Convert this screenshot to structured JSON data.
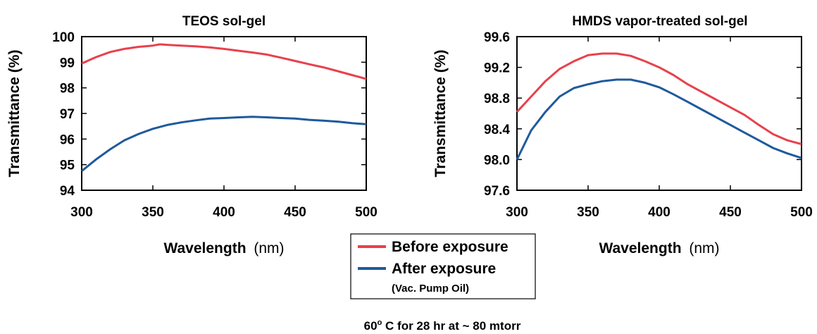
{
  "chart_data": [
    {
      "type": "line",
      "title": "TEOS sol-gel",
      "xlabel": "Wavelength",
      "xlabel_unit": "(nm)",
      "ylabel": "Transmittance (%)",
      "xlim": [
        300,
        500
      ],
      "ylim": [
        94,
        100
      ],
      "xticks": [
        300,
        350,
        400,
        450,
        500
      ],
      "yticks": [
        94,
        95,
        96,
        97,
        98,
        99,
        100
      ],
      "grid": false,
      "series": [
        {
          "name": "Before exposure",
          "color": "#e8414c",
          "x": [
            300,
            310,
            320,
            330,
            340,
            350,
            355,
            360,
            370,
            380,
            390,
            400,
            410,
            420,
            430,
            440,
            450,
            460,
            470,
            480,
            490,
            500
          ],
          "y": [
            98.95,
            99.2,
            99.4,
            99.52,
            99.6,
            99.65,
            99.7,
            99.68,
            99.65,
            99.62,
            99.58,
            99.52,
            99.45,
            99.38,
            99.3,
            99.18,
            99.05,
            98.92,
            98.8,
            98.65,
            98.5,
            98.35
          ]
        },
        {
          "name": "After exposure",
          "color": "#1f5a9c",
          "x": [
            300,
            310,
            320,
            330,
            340,
            350,
            360,
            370,
            380,
            390,
            400,
            410,
            420,
            430,
            440,
            450,
            460,
            470,
            480,
            490,
            500
          ],
          "y": [
            94.75,
            95.2,
            95.6,
            95.95,
            96.2,
            96.4,
            96.55,
            96.65,
            96.73,
            96.8,
            96.82,
            96.85,
            96.87,
            96.85,
            96.82,
            96.8,
            96.75,
            96.72,
            96.68,
            96.62,
            96.58
          ]
        }
      ]
    },
    {
      "type": "line",
      "title": "HMDS vapor-treated sol-gel",
      "xlabel": "Wavelength",
      "xlabel_unit": "(nm)",
      "ylabel": "Transmittance (%)",
      "xlim": [
        300,
        500
      ],
      "ylim": [
        97.6,
        99.6
      ],
      "xticks": [
        300,
        350,
        400,
        450,
        500
      ],
      "yticks": [
        "97.6",
        "98.0",
        "98.4",
        "98.8",
        "99.2",
        "99.6"
      ],
      "grid": false,
      "series": [
        {
          "name": "Before exposure",
          "color": "#e8414c",
          "x": [
            300,
            310,
            320,
            330,
            340,
            350,
            360,
            370,
            380,
            390,
            400,
            410,
            420,
            430,
            440,
            450,
            460,
            470,
            480,
            490,
            500
          ],
          "y": [
            98.62,
            98.82,
            99.02,
            99.18,
            99.28,
            99.36,
            99.38,
            99.38,
            99.35,
            99.28,
            99.2,
            99.1,
            98.98,
            98.88,
            98.78,
            98.68,
            98.58,
            98.45,
            98.33,
            98.25,
            98.2
          ]
        },
        {
          "name": "After exposure",
          "color": "#1f5a9c",
          "x": [
            300,
            310,
            320,
            330,
            340,
            350,
            360,
            370,
            380,
            390,
            400,
            410,
            420,
            430,
            440,
            450,
            460,
            470,
            480,
            490,
            500
          ],
          "y": [
            98.0,
            98.38,
            98.62,
            98.82,
            98.93,
            98.98,
            99.02,
            99.04,
            99.04,
            99.0,
            98.94,
            98.85,
            98.75,
            98.65,
            98.55,
            98.45,
            98.35,
            98.25,
            98.15,
            98.08,
            98.02
          ]
        }
      ]
    }
  ],
  "legend": {
    "items": [
      {
        "label": "Before exposure",
        "color": "#e8414c"
      },
      {
        "label": "After exposure",
        "color": "#1f5a9c"
      }
    ],
    "note": "(Vac. Pump Oil)"
  },
  "caption": {
    "temp": "60",
    "degree_mark": "o",
    "rest": " C for 28 hr at ~ 80 mtorr"
  }
}
